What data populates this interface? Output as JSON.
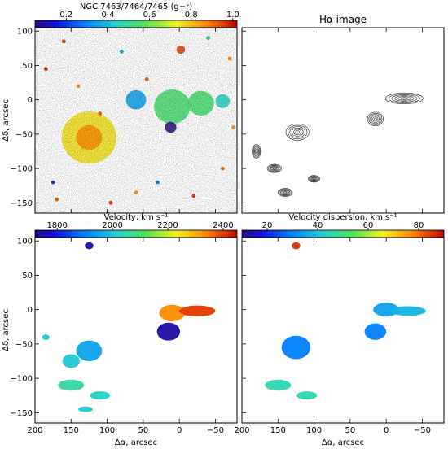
{
  "figure": {
    "axis_xlabel": "Δα, arcsec",
    "axis_ylabel": "Δδ, arcsec"
  },
  "chart_data": [
    {
      "type": "heatmap",
      "panel": "top-left",
      "colorbar_title": "NGC 7463/7464/7465 (g−r)",
      "colorbar_ticks": [
        "0.2",
        "0.4",
        "0.6",
        "0.8",
        "1.0"
      ],
      "colorbar_tick_values": [
        0.2,
        0.4,
        0.6,
        0.8,
        1.0
      ],
      "colorbar_range": [
        0.05,
        1.02
      ],
      "colormap": "rainbow",
      "xlim": [
        200,
        -80
      ],
      "ylim": [
        -165,
        105
      ],
      "yticks": [
        100,
        50,
        0,
        -50,
        -100,
        -150
      ],
      "blobs": [
        {
          "x": 125,
          "y": -55,
          "r": 38,
          "v": 0.75
        },
        {
          "x": 125,
          "y": -55,
          "r": 18,
          "v": 0.85
        },
        {
          "x": 10,
          "y": -10,
          "r": 25,
          "v": 0.55
        },
        {
          "x": -30,
          "y": -5,
          "r": 18,
          "v": 0.55
        },
        {
          "x": 12,
          "y": -40,
          "r": 8,
          "v": 0.05
        },
        {
          "x": 60,
          "y": 0,
          "r": 14,
          "v": 0.35
        },
        {
          "x": -60,
          "y": -2,
          "r": 10,
          "v": 0.45
        },
        {
          "x": -2,
          "y": 73,
          "r": 6,
          "v": 0.95
        }
      ]
    },
    {
      "type": "contour",
      "panel": "top-right",
      "title": "Hα image",
      "xlim": [
        200,
        -80
      ],
      "ylim": [
        -165,
        105
      ],
      "contour_centers": [
        {
          "x": 123,
          "y": -47,
          "rx": 16,
          "ry": 12
        },
        {
          "x": 15,
          "y": -28,
          "rx": 11,
          "ry": 10
        },
        {
          "x": -25,
          "y": 2,
          "rx": 26,
          "ry": 8
        },
        {
          "x": 155,
          "y": -100,
          "rx": 10,
          "ry": 6
        },
        {
          "x": 100,
          "y": -115,
          "rx": 8,
          "ry": 5
        },
        {
          "x": 180,
          "y": -75,
          "rx": 6,
          "ry": 10
        },
        {
          "x": 140,
          "y": -135,
          "rx": 10,
          "ry": 6
        }
      ]
    },
    {
      "type": "heatmap",
      "panel": "bottom-left",
      "colorbar_title": "Velocity, km s⁻¹",
      "colorbar_ticks": [
        "1800",
        "2000",
        "2200",
        "2400"
      ],
      "colorbar_tick_values": [
        1800,
        2000,
        2200,
        2400
      ],
      "colorbar_range": [
        1720,
        2450
      ],
      "colormap": "rainbow",
      "xlim": [
        200,
        -80
      ],
      "ylim": [
        -165,
        105
      ],
      "yticks": [
        100,
        50,
        0,
        -50,
        -100,
        -150
      ],
      "xticks": [
        200,
        150,
        100,
        50,
        0,
        -50
      ],
      "regions": [
        {
          "x": 125,
          "y": -60,
          "rx": 18,
          "ry": 15,
          "v": 1950
        },
        {
          "x": 150,
          "y": -75,
          "rx": 12,
          "ry": 10,
          "v": 2000
        },
        {
          "x": 15,
          "y": -32,
          "rx": 16,
          "ry": 13,
          "v": 1750
        },
        {
          "x": 10,
          "y": -5,
          "rx": 18,
          "ry": 12,
          "v": 2330
        },
        {
          "x": -25,
          "y": -2,
          "rx": 25,
          "ry": 8,
          "v": 2400
        },
        {
          "x": 125,
          "y": 93,
          "rx": 6,
          "ry": 5,
          "v": 1760
        },
        {
          "x": 185,
          "y": -40,
          "rx": 5,
          "ry": 4,
          "v": 2000
        },
        {
          "x": 150,
          "y": -110,
          "rx": 18,
          "ry": 8,
          "v": 2050
        },
        {
          "x": 110,
          "y": -125,
          "rx": 14,
          "ry": 6,
          "v": 2020
        },
        {
          "x": 130,
          "y": -145,
          "rx": 10,
          "ry": 4,
          "v": 2000
        }
      ]
    },
    {
      "type": "heatmap",
      "panel": "bottom-right",
      "colorbar_title": "Velocity dispersion, km s⁻¹",
      "colorbar_ticks": [
        "20",
        "40",
        "60",
        "80"
      ],
      "colorbar_tick_values": [
        20,
        40,
        60,
        80
      ],
      "colorbar_range": [
        10,
        90
      ],
      "colormap": "rainbow",
      "xlim": [
        200,
        -80
      ],
      "ylim": [
        -165,
        105
      ],
      "xticks": [
        200,
        150,
        100,
        50,
        0,
        -50
      ],
      "regions": [
        {
          "x": 125,
          "y": -55,
          "rx": 20,
          "ry": 17,
          "v": 30
        },
        {
          "x": 15,
          "y": -32,
          "rx": 15,
          "ry": 12,
          "v": 30
        },
        {
          "x": 0,
          "y": 0,
          "rx": 18,
          "ry": 10,
          "v": 35
        },
        {
          "x": -30,
          "y": -2,
          "rx": 25,
          "ry": 7,
          "v": 38
        },
        {
          "x": 125,
          "y": 93,
          "rx": 6,
          "ry": 5,
          "v": 85
        },
        {
          "x": 150,
          "y": -110,
          "rx": 18,
          "ry": 8,
          "v": 45
        },
        {
          "x": 110,
          "y": -125,
          "rx": 14,
          "ry": 6,
          "v": 45
        }
      ]
    }
  ]
}
